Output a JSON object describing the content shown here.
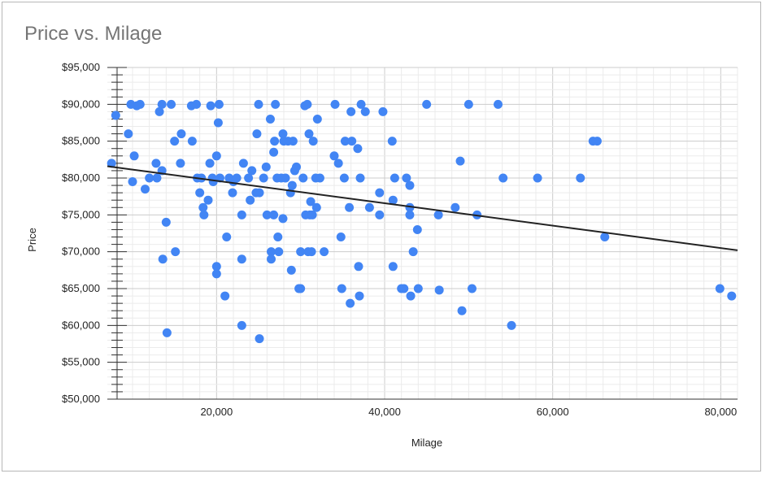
{
  "chart_data": {
    "type": "scatter",
    "title": "Price vs. Milage",
    "xlabel": "Milage",
    "ylabel": "Price",
    "xlim": [
      7000,
      82000
    ],
    "ylim": [
      50000,
      95000
    ],
    "x_ticks": [
      {
        "value": 20000,
        "label": "20,000"
      },
      {
        "value": 40000,
        "label": "40,000"
      },
      {
        "value": 60000,
        "label": "60,000"
      },
      {
        "value": 80000,
        "label": "80,000"
      }
    ],
    "y_ticks": [
      {
        "value": 50000,
        "label": "$50,000"
      },
      {
        "value": 55000,
        "label": "$55,000"
      },
      {
        "value": 60000,
        "label": "$60,000"
      },
      {
        "value": 65000,
        "label": "$65,000"
      },
      {
        "value": 70000,
        "label": "$70,000"
      },
      {
        "value": 75000,
        "label": "$75,000"
      },
      {
        "value": 80000,
        "label": "$80,000"
      },
      {
        "value": 85000,
        "label": "$85,000"
      },
      {
        "value": 90000,
        "label": "$90,000"
      },
      {
        "value": 95000,
        "label": "$95,000"
      }
    ],
    "grid": true,
    "legend": "none",
    "point_color": "#4285f4",
    "trendline": {
      "color": "#222222",
      "x": [
        7000,
        82000
      ],
      "y": [
        81600,
        70200
      ]
    },
    "points": [
      [
        7500,
        82000
      ],
      [
        8000,
        88500
      ],
      [
        9500,
        86000
      ],
      [
        9800,
        90000
      ],
      [
        10000,
        79500
      ],
      [
        10200,
        83000
      ],
      [
        10500,
        89800
      ],
      [
        10900,
        90000
      ],
      [
        11500,
        78500
      ],
      [
        12000,
        80000
      ],
      [
        12800,
        82000
      ],
      [
        12900,
        80000
      ],
      [
        13200,
        89000
      ],
      [
        13500,
        90000
      ],
      [
        13500,
        81000
      ],
      [
        13600,
        69000
      ],
      [
        14000,
        74000
      ],
      [
        14100,
        59000
      ],
      [
        14600,
        90000
      ],
      [
        15000,
        85000
      ],
      [
        15100,
        70000
      ],
      [
        15700,
        82000
      ],
      [
        15800,
        86000
      ],
      [
        17000,
        89800
      ],
      [
        17100,
        85000
      ],
      [
        17600,
        90000
      ],
      [
        17700,
        80000
      ],
      [
        18000,
        78000
      ],
      [
        18200,
        80000
      ],
      [
        18400,
        76000
      ],
      [
        18500,
        75000
      ],
      [
        19000,
        77000
      ],
      [
        19200,
        82000
      ],
      [
        19300,
        89800
      ],
      [
        19500,
        80000
      ],
      [
        19600,
        79500
      ],
      [
        20000,
        83000
      ],
      [
        20000,
        68000
      ],
      [
        20000,
        67000
      ],
      [
        20200,
        87500
      ],
      [
        20300,
        90000
      ],
      [
        20400,
        80000
      ],
      [
        21000,
        64000
      ],
      [
        21200,
        72000
      ],
      [
        21500,
        80000
      ],
      [
        21900,
        78000
      ],
      [
        22000,
        79500
      ],
      [
        22400,
        80000
      ],
      [
        23000,
        75000
      ],
      [
        23000,
        69000
      ],
      [
        23000,
        60000
      ],
      [
        23200,
        82000
      ],
      [
        23800,
        80000
      ],
      [
        24000,
        77000
      ],
      [
        24200,
        81000
      ],
      [
        24700,
        78000
      ],
      [
        24800,
        86000
      ],
      [
        25000,
        90000
      ],
      [
        25100,
        78000
      ],
      [
        25100,
        58200
      ],
      [
        25600,
        80000
      ],
      [
        25900,
        81500
      ],
      [
        26000,
        75000
      ],
      [
        26400,
        88000
      ],
      [
        26500,
        70000
      ],
      [
        26500,
        69000
      ],
      [
        26800,
        75000
      ],
      [
        26800,
        83500
      ],
      [
        26900,
        85000
      ],
      [
        27000,
        90000
      ],
      [
        27200,
        80000
      ],
      [
        27300,
        72000
      ],
      [
        27400,
        70000
      ],
      [
        27700,
        80000
      ],
      [
        27900,
        86000
      ],
      [
        27900,
        74500
      ],
      [
        28000,
        85000
      ],
      [
        28200,
        80000
      ],
      [
        28500,
        85000
      ],
      [
        28800,
        78000
      ],
      [
        28900,
        67500
      ],
      [
        29000,
        79000
      ],
      [
        29100,
        85000
      ],
      [
        29300,
        81000
      ],
      [
        29500,
        81500
      ],
      [
        29800,
        65000
      ],
      [
        30000,
        70000
      ],
      [
        30000,
        65000
      ],
      [
        30300,
        80000
      ],
      [
        30500,
        89800
      ],
      [
        30600,
        75000
      ],
      [
        30800,
        90000
      ],
      [
        30900,
        70000
      ],
      [
        31000,
        86000
      ],
      [
        31100,
        75000
      ],
      [
        31200,
        76800
      ],
      [
        31300,
        70000
      ],
      [
        31400,
        75000
      ],
      [
        31500,
        85000
      ],
      [
        31800,
        80000
      ],
      [
        31900,
        76000
      ],
      [
        32000,
        88000
      ],
      [
        32300,
        80000
      ],
      [
        32800,
        70000
      ],
      [
        34000,
        83000
      ],
      [
        34100,
        90000
      ],
      [
        34500,
        82000
      ],
      [
        34800,
        72000
      ],
      [
        34900,
        65000
      ],
      [
        35200,
        80000
      ],
      [
        35300,
        85000
      ],
      [
        35800,
        76000
      ],
      [
        35900,
        63000
      ],
      [
        36000,
        89000
      ],
      [
        36100,
        85000
      ],
      [
        36800,
        84000
      ],
      [
        36900,
        68000
      ],
      [
        37000,
        64000
      ],
      [
        37100,
        80000
      ],
      [
        37200,
        90000
      ],
      [
        37700,
        89000
      ],
      [
        38200,
        76000
      ],
      [
        39400,
        78000
      ],
      [
        39400,
        75000
      ],
      [
        39800,
        89000
      ],
      [
        40900,
        85000
      ],
      [
        41000,
        68000
      ],
      [
        41000,
        77000
      ],
      [
        41200,
        80000
      ],
      [
        42000,
        65000
      ],
      [
        42300,
        65000
      ],
      [
        42600,
        80000
      ],
      [
        43000,
        76000
      ],
      [
        43000,
        75000
      ],
      [
        43000,
        79000
      ],
      [
        43100,
        64000
      ],
      [
        43400,
        70000
      ],
      [
        43900,
        73000
      ],
      [
        44000,
        65000
      ],
      [
        45000,
        90000
      ],
      [
        46400,
        75000
      ],
      [
        46500,
        64800
      ],
      [
        48400,
        76000
      ],
      [
        49000,
        82300
      ],
      [
        49200,
        62000
      ],
      [
        50000,
        90000
      ],
      [
        50400,
        65000
      ],
      [
        51000,
        75000
      ],
      [
        53500,
        90000
      ],
      [
        54100,
        80000
      ],
      [
        55100,
        60000
      ],
      [
        58200,
        80000
      ],
      [
        63300,
        80000
      ],
      [
        64800,
        85000
      ],
      [
        65300,
        85000
      ],
      [
        66200,
        72000
      ],
      [
        79900,
        65000
      ],
      [
        81300,
        64000
      ]
    ]
  }
}
